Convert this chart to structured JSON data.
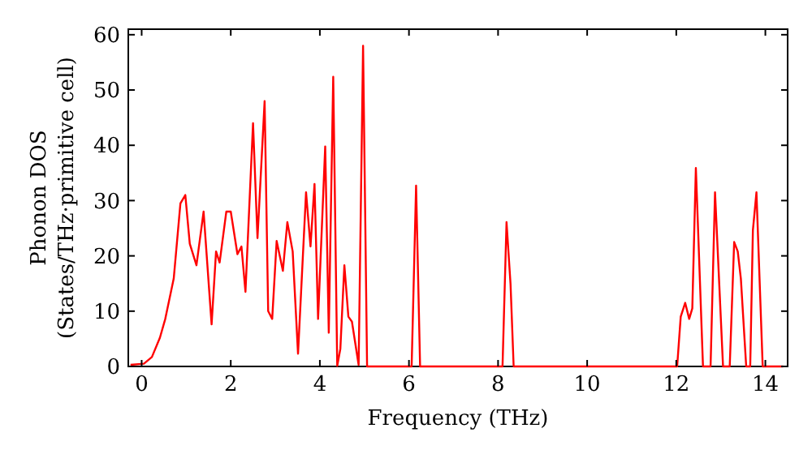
{
  "chart_data": {
    "type": "line",
    "xlabel": "Frequency (THz)",
    "ylabel": "Phonon DOS\n(States/THz·primitive cell)",
    "xlim": [
      -0.3,
      14.5
    ],
    "ylim": [
      0,
      61
    ],
    "xticks": [
      0,
      2,
      4,
      6,
      8,
      10,
      12,
      14
    ],
    "yticks": [
      0,
      10,
      20,
      30,
      40,
      50,
      60
    ],
    "grid": false,
    "marker": "none",
    "line_style": "solid",
    "series": [
      {
        "color": "#ff0000",
        "x": [
          -0.25,
          0.05,
          0.23,
          0.41,
          0.53,
          0.72,
          0.87,
          0.98,
          1.08,
          1.23,
          1.39,
          1.57,
          1.67,
          1.75,
          1.9,
          2.0,
          2.15,
          2.24,
          2.33,
          2.5,
          2.6,
          2.76,
          2.84,
          2.93,
          3.03,
          3.17,
          3.27,
          3.39,
          3.51,
          3.69,
          3.79,
          3.88,
          3.96,
          4.12,
          4.2,
          4.3,
          4.39,
          4.46,
          4.55,
          4.64,
          4.72,
          4.87,
          4.97,
          5.06,
          6.06,
          6.16,
          6.25,
          8.1,
          8.19,
          8.28,
          8.35,
          12.02,
          12.1,
          12.2,
          12.29,
          12.36,
          12.44,
          12.6,
          12.77,
          12.87,
          13.05,
          13.2,
          13.3,
          13.38,
          13.45,
          13.57,
          13.66,
          13.72,
          13.8,
          13.94,
          14.4
        ],
        "values": [
          0.3,
          0.5,
          1.7,
          5.2,
          8.6,
          15.9,
          29.5,
          31,
          22.2,
          18.3,
          28,
          7.6,
          20.8,
          18.8,
          28,
          28,
          20.3,
          21.7,
          13.5,
          44,
          23.2,
          48,
          10,
          8.6,
          22.7,
          17.3,
          26.1,
          20.8,
          2.3,
          31.5,
          21.7,
          33,
          8.6,
          39.8,
          6.1,
          52.4,
          0.1,
          3.2,
          18.3,
          9,
          8.1,
          0.3,
          58,
          0,
          0,
          32.7,
          0,
          0,
          26.1,
          14.9,
          0,
          0,
          9,
          11.5,
          8.6,
          10.5,
          35.9,
          0,
          0,
          31.5,
          0,
          0,
          22.5,
          20.8,
          15.9,
          0,
          0,
          24.6,
          31.5,
          0,
          0
        ]
      }
    ]
  }
}
